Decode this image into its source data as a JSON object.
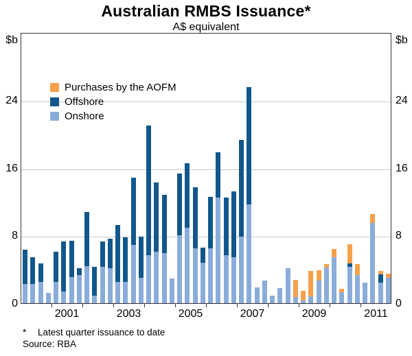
{
  "title": "Australian RMBS Issuance*",
  "subtitle": "A$ equivalent",
  "unit_left": "$b",
  "unit_right": "$b",
  "footnote_marker": "*",
  "footnote_text": "Latest quarter issuance to date",
  "source": "Source: RBA",
  "colors": {
    "aofm": "#F5A14B",
    "offshore": "#11578C",
    "onshore": "#8AACDB",
    "gridline": "#c9c9c9",
    "frame": "#333333"
  },
  "legend": [
    {
      "key": "aofm",
      "label": "Purchases by the AOFM"
    },
    {
      "key": "offshore",
      "label": "Offshore"
    },
    {
      "key": "onshore",
      "label": "Onshore"
    }
  ],
  "chart_data": {
    "type": "bar",
    "stacked": true,
    "title": "Australian RMBS Issuance*",
    "subtitle": "A$ equivalent",
    "ylabel": "$b",
    "ylim": [
      0,
      32
    ],
    "yticks": [
      0,
      8,
      16,
      24
    ],
    "grid": true,
    "legend_position": "top-left",
    "x_start_year": 2000,
    "xtick_years": [
      2001,
      2003,
      2005,
      2007,
      2009,
      2011
    ],
    "x": [
      "2000Q1",
      "2000Q2",
      "2000Q3",
      "2000Q4",
      "2001Q1",
      "2001Q2",
      "2001Q3",
      "2001Q4",
      "2002Q1",
      "2002Q2",
      "2002Q3",
      "2002Q4",
      "2003Q1",
      "2003Q2",
      "2003Q3",
      "2003Q4",
      "2004Q1",
      "2004Q2",
      "2004Q3",
      "2004Q4",
      "2005Q1",
      "2005Q2",
      "2005Q3",
      "2005Q4",
      "2006Q1",
      "2006Q2",
      "2006Q3",
      "2006Q4",
      "2007Q1",
      "2007Q2",
      "2007Q3",
      "2007Q4",
      "2008Q1",
      "2008Q2",
      "2008Q3",
      "2008Q4",
      "2009Q1",
      "2009Q2",
      "2009Q3",
      "2009Q4",
      "2010Q1",
      "2010Q2",
      "2010Q3",
      "2010Q4",
      "2011Q1",
      "2011Q2",
      "2011Q3",
      "2011Q4"
    ],
    "series": [
      {
        "name": "Onshore",
        "key": "onshore",
        "values": [
          2.3,
          2.25,
          2.5,
          1.2,
          2.5,
          1.4,
          3.1,
          3.3,
          4.4,
          0.9,
          4.3,
          4.1,
          2.5,
          2.5,
          6.9,
          3.0,
          5.7,
          6.1,
          5.9,
          2.9,
          8.0,
          8.9,
          6.5,
          4.8,
          6.5,
          12.5,
          5.7,
          5.4,
          7.9,
          11.7,
          1.9,
          2.7,
          0.9,
          1.8,
          4.1,
          0.7,
          0.3,
          0.8,
          2.7,
          4.2,
          5.4,
          1.3,
          4.3,
          3.3,
          2.4,
          9.5,
          2.4,
          3.0
        ]
      },
      {
        "name": "Offshore",
        "key": "offshore",
        "values": [
          4.0,
          3.2,
          2.2,
          0,
          3.6,
          5.9,
          4.3,
          0.8,
          6.4,
          3.4,
          3.0,
          3.5,
          6.7,
          5.3,
          7.9,
          4.9,
          15.3,
          8.2,
          6.9,
          0,
          7.3,
          7.6,
          7.2,
          1.8,
          6.1,
          5.3,
          6.8,
          7.8,
          11.4,
          13.8,
          0,
          0,
          0,
          0,
          0,
          0,
          0,
          0,
          0,
          0,
          0,
          0,
          0.4,
          0,
          0,
          0,
          1.0,
          0
        ]
      },
      {
        "name": "Purchases by the AOFM",
        "key": "aofm",
        "values": [
          0,
          0,
          0,
          0,
          0,
          0,
          0,
          0,
          0,
          0,
          0,
          0,
          0,
          0,
          0,
          0,
          0,
          0,
          0,
          0,
          0,
          0,
          0,
          0,
          0,
          0,
          0,
          0,
          0,
          0,
          0,
          0,
          0,
          0,
          0,
          2.1,
          1.2,
          3.0,
          1.2,
          0.4,
          1.0,
          0.4,
          2.3,
          1.3,
          0,
          1.0,
          0.4,
          0.5
        ]
      }
    ]
  }
}
